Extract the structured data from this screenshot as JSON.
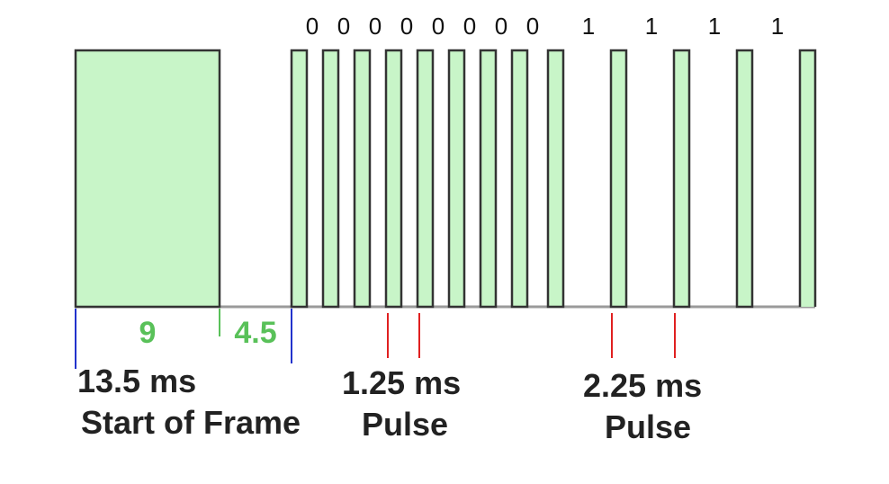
{
  "bits": {
    "values": [
      "0",
      "0",
      "0",
      "0",
      "0",
      "0",
      "0",
      "0",
      "1",
      "1",
      "1",
      "1"
    ]
  },
  "durations": {
    "burst": "9",
    "space": "4.5"
  },
  "captions": {
    "start_frame_time": "13.5 ms",
    "start_frame_label": "Start of Frame",
    "zero_pulse_time": "1.25 ms",
    "zero_pulse_label": "Pulse",
    "one_pulse_time": "2.25 ms",
    "one_pulse_label": "Pulse"
  },
  "colors": {
    "pulse_fill": "#c8f5c8",
    "outline": "#333333",
    "baseline": "#9a9a9a",
    "frame_marker": "#2233cc",
    "pulse_marker": "#e02020",
    "duration_text": "#59c159"
  }
}
